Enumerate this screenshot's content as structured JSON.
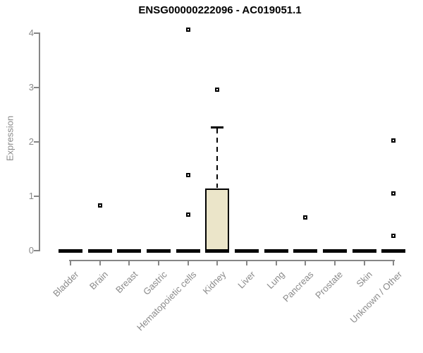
{
  "chart_data": {
    "type": "boxplot",
    "title": "ENSG00000222096 - AC019051.1",
    "ylabel": "Expression",
    "xlabel": "",
    "ylim": [
      0,
      4
    ],
    "yticks": [
      0,
      1,
      2,
      3,
      4
    ],
    "grid": false,
    "legend": false,
    "x_label_rotation_deg": 45,
    "categories": [
      "Bladder",
      "Brain",
      "Breast",
      "Gastric",
      "Hematopoietic cells",
      "Kidney",
      "Liver",
      "Lung",
      "Pancreas",
      "Prostate",
      "Skin",
      "Unknown / Other"
    ],
    "boxes": [
      {
        "category": "Bladder",
        "q1": 0,
        "median": 0,
        "q3": 0,
        "whisker_low": 0,
        "whisker_high": 0,
        "outliers": []
      },
      {
        "category": "Brain",
        "q1": 0,
        "median": 0,
        "q3": 0,
        "whisker_low": 0,
        "whisker_high": 0,
        "outliers": [
          0.83
        ]
      },
      {
        "category": "Breast",
        "q1": 0,
        "median": 0,
        "q3": 0,
        "whisker_low": 0,
        "whisker_high": 0,
        "outliers": []
      },
      {
        "category": "Gastric",
        "q1": 0,
        "median": 0,
        "q3": 0,
        "whisker_low": 0,
        "whisker_high": 0,
        "outliers": []
      },
      {
        "category": "Hematopoietic cells",
        "q1": 0,
        "median": 0,
        "q3": 0,
        "whisker_low": 0,
        "whisker_high": 0,
        "outliers": [
          0.66,
          1.39,
          4.06
        ]
      },
      {
        "category": "Kidney",
        "q1": 0,
        "median": 0,
        "q3": 1.14,
        "whisker_low": 0,
        "whisker_high": 2.27,
        "outliers": [
          2.96
        ]
      },
      {
        "category": "Liver",
        "q1": 0,
        "median": 0,
        "q3": 0,
        "whisker_low": 0,
        "whisker_high": 0,
        "outliers": []
      },
      {
        "category": "Lung",
        "q1": 0,
        "median": 0,
        "q3": 0,
        "whisker_low": 0,
        "whisker_high": 0,
        "outliers": []
      },
      {
        "category": "Pancreas",
        "q1": 0,
        "median": 0,
        "q3": 0,
        "whisker_low": 0,
        "whisker_high": 0,
        "outliers": [
          0.61
        ]
      },
      {
        "category": "Prostate",
        "q1": 0,
        "median": 0,
        "q3": 0,
        "whisker_low": 0,
        "whisker_high": 0,
        "outliers": []
      },
      {
        "category": "Skin",
        "q1": 0,
        "median": 0,
        "q3": 0,
        "whisker_low": 0,
        "whisker_high": 0,
        "outliers": []
      },
      {
        "category": "Unknown / Other",
        "q1": 0,
        "median": 0,
        "q3": 0,
        "whisker_low": 0,
        "whisker_high": 0,
        "outliers": [
          0.27,
          1.05,
          2.03
        ]
      }
    ],
    "colors": {
      "box_fill": "#EBE5C9",
      "box_border": "#000000",
      "axis": "#868686",
      "text": "#8A8A8A",
      "title": "#000000",
      "background": "#FFFFFF"
    }
  }
}
